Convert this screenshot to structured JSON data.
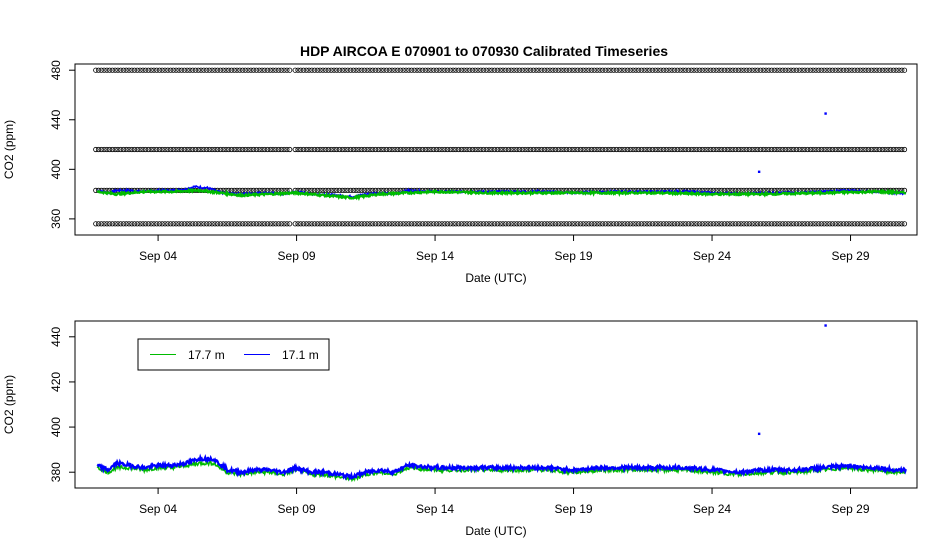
{
  "title": "HDP   AIRCOA  E    070901  to  070930   Calibrated Timeseries",
  "chart_data": [
    {
      "type": "scatter",
      "xlabel": "Date (UTC)",
      "ylabel": "CO2 (ppm)",
      "x_ticks": [
        "Sep 04",
        "Sep 09",
        "Sep 14",
        "Sep 19",
        "Sep 24",
        "Sep 29"
      ],
      "x_tick_days": [
        4,
        9,
        14,
        19,
        24,
        29
      ],
      "y_ticks": [
        360,
        400,
        440,
        480
      ],
      "xlim": [
        1.0,
        31.4
      ],
      "ylim": [
        347,
        485
      ],
      "grid": false,
      "legend": "none",
      "calibration_levels": [
        356,
        383,
        416,
        480
      ],
      "calibration_gaps": [
        [
          8.8,
          8.92
        ]
      ],
      "outliers": [
        {
          "day": 25.7,
          "value": 398
        },
        {
          "day": 28.1,
          "value": 445
        }
      ],
      "series": [
        {
          "color": "#0000ff",
          "days": [
            1.8,
            2.2,
            2.5,
            3.0,
            3.5,
            4.0,
            4.5,
            5.0,
            5.3,
            5.8,
            6.3,
            7.0,
            7.5,
            8.0,
            8.5,
            9.0,
            9.5,
            10.0,
            10.5,
            11.0,
            11.5,
            12.0,
            12.5,
            13.0,
            14.0,
            15.0,
            16.0,
            17.0,
            18.0,
            19.0,
            20.0,
            21.0,
            22.0,
            23.0,
            24.0,
            25.0,
            26.0,
            27.0,
            28.0,
            29.0,
            29.5,
            30.0,
            30.5,
            31.0
          ],
          "values": [
            383,
            381,
            383,
            383,
            382,
            383,
            383,
            384,
            386,
            385,
            381,
            380,
            381,
            381,
            380,
            382,
            380,
            380,
            379,
            378,
            380,
            381,
            380,
            383,
            382,
            382,
            382,
            382,
            382,
            381,
            382,
            382,
            382,
            382,
            381,
            380,
            381,
            381,
            382,
            383,
            382,
            382,
            381,
            381
          ]
        },
        {
          "color": "#00bb00",
          "days": [
            1.8,
            2.5,
            3.5,
            4.5,
            5.5,
            7.0,
            8.0,
            9.0,
            10.0,
            11.0,
            12.0,
            14.0,
            16.0,
            18.0,
            20.0,
            22.0,
            24.0,
            26.0,
            28.0,
            30.0,
            31.0
          ],
          "values": [
            382,
            380,
            382,
            382,
            383,
            379,
            380,
            381,
            379,
            377,
            380,
            382,
            381,
            381,
            381,
            381,
            380,
            380,
            381,
            382,
            381
          ]
        }
      ]
    },
    {
      "type": "line",
      "xlabel": "Date (UTC)",
      "ylabel": "CO2 (ppm)",
      "x_ticks": [
        "Sep 04",
        "Sep 09",
        "Sep 14",
        "Sep 19",
        "Sep 24",
        "Sep 29"
      ],
      "x_tick_days": [
        4,
        9,
        14,
        19,
        24,
        29
      ],
      "y_ticks": [
        380,
        400,
        420,
        440
      ],
      "xlim": [
        1.0,
        31.4
      ],
      "ylim": [
        373,
        447
      ],
      "grid": false,
      "legend": "top-left",
      "outliers": [
        {
          "day": 25.7,
          "value": 397
        },
        {
          "day": 28.1,
          "value": 445
        }
      ],
      "series": [
        {
          "name": "17.7 m",
          "color": "#00bb00",
          "days": [
            1.8,
            2.2,
            2.5,
            3.0,
            3.5,
            4.0,
            4.5,
            5.0,
            5.5,
            6.0,
            6.5,
            7.0,
            7.5,
            8.0,
            8.5,
            9.0,
            9.5,
            10.0,
            10.5,
            11.0,
            11.5,
            12.0,
            12.5,
            13.0,
            14.0,
            15.0,
            16.0,
            17.0,
            18.0,
            19.0,
            20.0,
            21.0,
            22.0,
            23.0,
            24.0,
            25.0,
            26.0,
            27.0,
            28.0,
            29.0,
            29.5,
            30.0,
            30.5,
            31.0
          ],
          "values": [
            382,
            380,
            382,
            382,
            381,
            382,
            382,
            383,
            384,
            384,
            380,
            379,
            380,
            380,
            379,
            381,
            379,
            379,
            378,
            377,
            379,
            380,
            379,
            382,
            381,
            381,
            381,
            381,
            381,
            380,
            381,
            381,
            381,
            381,
            380,
            379,
            380,
            380,
            381,
            382,
            381,
            381,
            380,
            380
          ]
        },
        {
          "name": "17.1 m",
          "color": "#0000ff",
          "days": [
            1.8,
            2.2,
            2.5,
            3.0,
            3.5,
            4.0,
            4.5,
            5.0,
            5.5,
            6.0,
            6.5,
            7.0,
            7.5,
            8.0,
            8.5,
            9.0,
            9.5,
            10.0,
            10.5,
            11.0,
            11.5,
            12.0,
            12.5,
            13.0,
            14.0,
            15.0,
            16.0,
            17.0,
            18.0,
            19.0,
            20.0,
            21.0,
            22.0,
            23.0,
            24.0,
            25.0,
            26.0,
            27.0,
            28.0,
            29.0,
            29.5,
            30.0,
            30.5,
            31.0
          ],
          "values": [
            383,
            381,
            384,
            383,
            382,
            383,
            383,
            384,
            386,
            386,
            381,
            380,
            381,
            381,
            380,
            382,
            380,
            380,
            379,
            378,
            380,
            381,
            380,
            383,
            382,
            382,
            382,
            382,
            382,
            381,
            382,
            382,
            382,
            382,
            381,
            380,
            381,
            381,
            382,
            383,
            382,
            382,
            381,
            381
          ]
        }
      ]
    }
  ]
}
